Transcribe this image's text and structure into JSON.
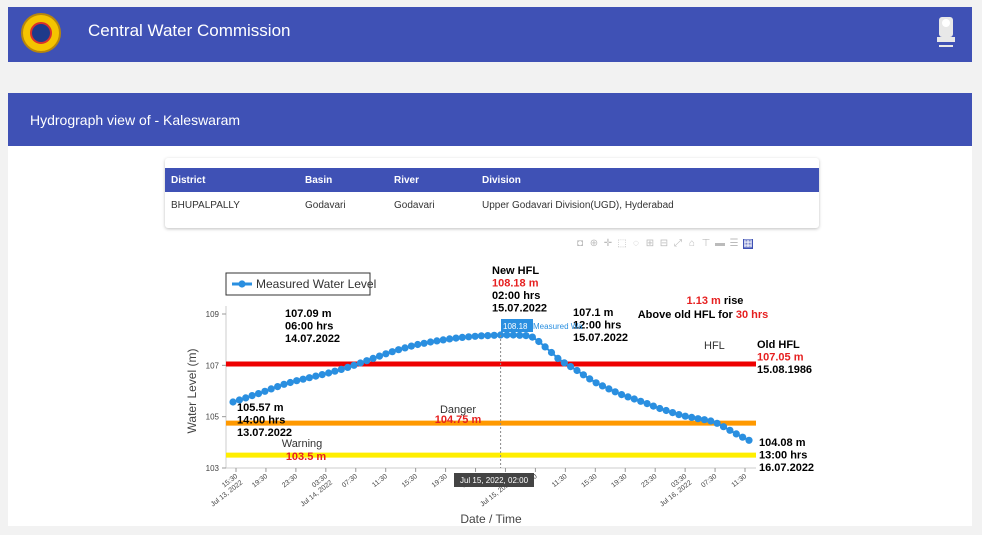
{
  "header": {
    "title": "Central Water Commission"
  },
  "subheader": {
    "title": "Hydrograph view of - Kaleswaram"
  },
  "table": {
    "columns": [
      "District",
      "Basin",
      "River",
      "Division"
    ],
    "rows": [
      [
        "BHUPALPALLY",
        "Godavari",
        "Godavari",
        "Upper Godavari Division(UGD), Hyderabad"
      ]
    ]
  },
  "modebar": [
    "camera-icon",
    "zoom-icon",
    "pan-icon",
    "box-select-icon",
    "lasso-icon",
    "zoom-in-icon",
    "zoom-out-icon",
    "autoscale-icon",
    "reset-axes-icon",
    "spike-lines-icon",
    "hover-closest-icon",
    "hover-compare-icon",
    "plotly-logo-icon"
  ],
  "colors": {
    "brand": "#3f51b5",
    "series": "#2a8fe0",
    "hfl": "#ee0000",
    "danger": "#ff9900",
    "warning": "#ffee00",
    "red_text": "#e62020"
  },
  "chart_data": {
    "type": "line",
    "xlabel": "Date / Time",
    "ylabel": "Water Level (m)",
    "ylim": [
      103,
      109
    ],
    "yticks": [
      "103",
      "105",
      "107",
      "109"
    ],
    "xticks": [
      [
        "15:30",
        "Jul 13, 2022"
      ],
      [
        "19:30",
        ""
      ],
      [
        "23:30",
        ""
      ],
      [
        "03:30",
        "Jul 14, 2022"
      ],
      [
        "07:30",
        ""
      ],
      [
        "11:30",
        ""
      ],
      [
        "15:30",
        ""
      ],
      [
        "19:30",
        ""
      ],
      [
        "23:30",
        ""
      ],
      [
        "03:30",
        "Jul 15, 2022"
      ],
      [
        "07:30",
        ""
      ],
      [
        "11:30",
        ""
      ],
      [
        "15:30",
        ""
      ],
      [
        "19:30",
        ""
      ],
      [
        "23:30",
        ""
      ],
      [
        "03:30",
        "Jul 16, 2022"
      ],
      [
        "07:30",
        ""
      ],
      [
        "11:30",
        ""
      ]
    ],
    "legend": "Measured Water Level",
    "legend_position": "top-left",
    "series": [
      {
        "name": "Measured Water Level",
        "values": [
          105.57,
          105.65,
          105.73,
          105.82,
          105.9,
          105.99,
          106.08,
          106.17,
          106.26,
          106.33,
          106.4,
          106.46,
          106.52,
          106.58,
          106.64,
          106.7,
          106.77,
          106.84,
          106.92,
          107.0,
          107.09,
          107.18,
          107.27,
          107.36,
          107.45,
          107.53,
          107.61,
          107.68,
          107.75,
          107.81,
          107.86,
          107.91,
          107.95,
          107.99,
          108.03,
          108.06,
          108.09,
          108.11,
          108.13,
          108.15,
          108.16,
          108.17,
          108.18,
          108.18,
          108.18,
          108.17,
          108.16,
          108.1,
          107.93,
          107.72,
          107.5,
          107.27,
          107.1,
          106.95,
          106.8,
          106.63,
          106.47,
          106.32,
          106.2,
          106.08,
          105.97,
          105.86,
          105.77,
          105.69,
          105.6,
          105.51,
          105.41,
          105.32,
          105.24,
          105.16,
          105.08,
          105.02,
          104.97,
          104.92,
          104.88,
          104.83,
          104.74,
          104.61,
          104.47,
          104.33,
          104.2,
          104.08
        ]
      }
    ],
    "reference_lines": [
      {
        "name": "HFL",
        "value": 107.05
      },
      {
        "name": "Danger",
        "value": 104.75
      },
      {
        "name": "Warning",
        "value": 103.5
      }
    ],
    "annotations": {
      "start": [
        "105.57 m",
        "14:00 hrs",
        "13.07.2022"
      ],
      "mid": [
        "107.09 m",
        "06:00 hrs",
        "14.07.2022"
      ],
      "new_hfl": [
        "New HFL",
        "108.18 m",
        "02:00 hrs",
        "15.07.2022"
      ],
      "cross": [
        "107.1 m",
        "12:00 hrs",
        "15.07.2022"
      ],
      "rise": [
        "1.13 m",
        " rise",
        "Above old HFL for ",
        "30 hrs"
      ],
      "old_hfl": [
        "Old HFL",
        "107.05 m",
        "15.08.1986"
      ],
      "end": [
        "104.08 m",
        "13:00 hrs",
        "16.07.2022"
      ],
      "hfl_label": "HFL",
      "danger_label": "Danger",
      "danger_value": "104.75 m",
      "warning_label": "Warning",
      "warning_value": "103.5 m"
    },
    "hover": {
      "tooltip_value": "108.18",
      "tooltip_name": "Measured Wa",
      "x_label": "Jul 15, 2022, 02:00"
    }
  }
}
